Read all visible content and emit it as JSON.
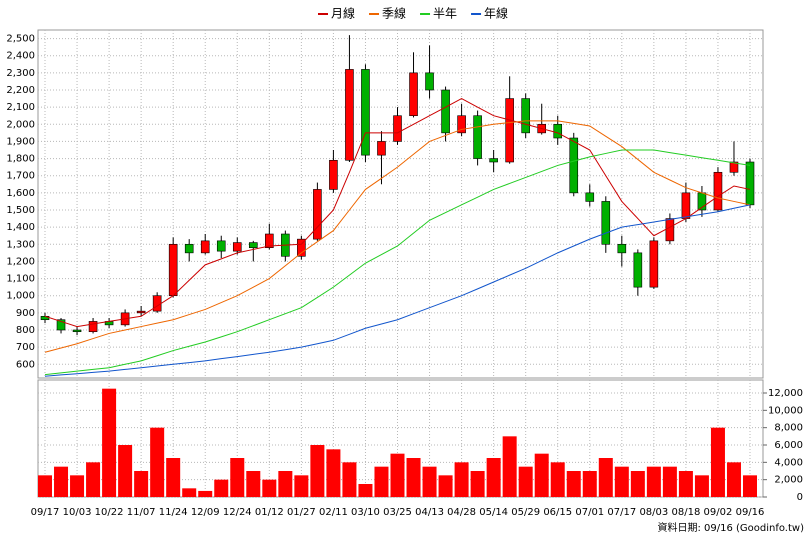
{
  "chart_data": [
    {
      "type": "candlestick",
      "categories": [
        "09/17",
        null,
        "10/03",
        null,
        "10/22",
        null,
        "11/07",
        null,
        "11/24",
        null,
        "12/09",
        null,
        "12/24",
        null,
        "01/12",
        null,
        "01/27",
        null,
        "02/11",
        null,
        "03/10",
        null,
        "03/25",
        null,
        "04/13",
        null,
        "04/28",
        null,
        "05/14",
        null,
        "05/29",
        null,
        "06/15",
        null,
        "07/01",
        null,
        "07/17",
        null,
        "08/03",
        null,
        "08/18",
        null,
        "09/02",
        null,
        "09/16"
      ],
      "open": [
        880,
        860,
        800,
        790,
        850,
        830,
        900,
        910,
        1000,
        1300,
        1250,
        1320,
        1260,
        1310,
        1280,
        1360,
        1230,
        1330,
        1620,
        1790,
        2320,
        1820,
        1900,
        2050,
        2300,
        2200,
        1950,
        2050,
        1800,
        1780,
        2150,
        1950,
        2000,
        1920,
        1600,
        1550,
        1300,
        1250,
        1050,
        1320,
        1450,
        1600,
        1500,
        1720,
        1780
      ],
      "high": [
        900,
        870,
        820,
        870,
        870,
        920,
        940,
        1020,
        1340,
        1330,
        1360,
        1350,
        1340,
        1320,
        1420,
        1380,
        1350,
        1660,
        1850,
        2520,
        2350,
        1960,
        2100,
        2420,
        2460,
        2220,
        2120,
        2080,
        1850,
        2280,
        2180,
        2120,
        2050,
        1950,
        1650,
        1580,
        1350,
        1270,
        1340,
        1480,
        1660,
        1640,
        1750,
        1900,
        1800
      ],
      "low": [
        840,
        780,
        770,
        780,
        810,
        820,
        880,
        900,
        990,
        1200,
        1240,
        1220,
        1240,
        1200,
        1270,
        1200,
        1210,
        1320,
        1600,
        1780,
        1780,
        1650,
        1880,
        2040,
        2150,
        1900,
        1930,
        1760,
        1720,
        1770,
        1920,
        1940,
        1880,
        1580,
        1520,
        1250,
        1170,
        1000,
        1040,
        1300,
        1430,
        1460,
        1490,
        1700,
        1510
      ],
      "close": [
        860,
        800,
        790,
        850,
        830,
        900,
        910,
        1000,
        1300,
        1250,
        1320,
        1260,
        1310,
        1280,
        1360,
        1230,
        1330,
        1620,
        1790,
        2320,
        1820,
        1900,
        2050,
        2300,
        2200,
        1950,
        2050,
        1800,
        1780,
        2150,
        1950,
        2000,
        1920,
        1600,
        1550,
        1300,
        1250,
        1050,
        1320,
        1450,
        1600,
        1500,
        1720,
        1780,
        1530
      ],
      "up_color": "#ff0000",
      "down_color": "#00b000",
      "series": [
        {
          "name": "月線",
          "color": "#cc0000",
          "values": [
            880,
            850,
            820,
            835,
            850,
            865,
            880,
            940,
            1000,
            1090,
            1180,
            1215,
            1250,
            1270,
            1290,
            1295,
            1300,
            1400,
            1500,
            1720,
            1950,
            1950,
            1950,
            2000,
            2050,
            2100,
            2150,
            2100,
            2050,
            2025,
            2000,
            1975,
            1950,
            1900,
            1850,
            1700,
            1550,
            1450,
            1350,
            1400,
            1450,
            1515,
            1580,
            1640,
            1620
          ]
        },
        {
          "name": "季線",
          "color": "#ee6600",
          "values": [
            670,
            695,
            720,
            750,
            780,
            800,
            820,
            840,
            860,
            890,
            920,
            960,
            1000,
            1050,
            1100,
            1175,
            1250,
            1315,
            1380,
            1500,
            1620,
            1685,
            1750,
            1825,
            1900,
            1935,
            1970,
            1985,
            2000,
            2010,
            2020,
            2020,
            2020,
            2005,
            1990,
            1930,
            1870,
            1795,
            1720,
            1675,
            1630,
            1600,
            1570,
            1550,
            1530
          ]
        },
        {
          "name": "半年",
          "color": "#22cc22",
          "values": [
            540,
            550,
            560,
            570,
            580,
            600,
            620,
            650,
            680,
            705,
            730,
            760,
            790,
            825,
            860,
            895,
            930,
            990,
            1050,
            1120,
            1190,
            1240,
            1290,
            1365,
            1440,
            1485,
            1530,
            1575,
            1620,
            1655,
            1690,
            1725,
            1760,
            1785,
            1810,
            1830,
            1850,
            1850,
            1850,
            1835,
            1820,
            1805,
            1790,
            1775,
            1760
          ]
        },
        {
          "name": "年線",
          "color": "#1155cc",
          "values": [
            530,
            538,
            545,
            553,
            560,
            570,
            580,
            590,
            600,
            610,
            620,
            633,
            645,
            658,
            670,
            685,
            700,
            720,
            740,
            775,
            810,
            835,
            860,
            895,
            930,
            965,
            1000,
            1040,
            1080,
            1120,
            1160,
            1205,
            1250,
            1290,
            1330,
            1365,
            1400,
            1415,
            1430,
            1445,
            1460,
            1475,
            1490,
            1510,
            1530
          ]
        }
      ],
      "ylim": [
        520,
        2550
      ],
      "yticks": [
        600,
        700,
        800,
        900,
        {
          "value": 1000,
          "label": "1,000"
        },
        {
          "value": 1100,
          "label": "1,100"
        },
        {
          "value": 1200,
          "label": "1,200"
        },
        {
          "value": 1300,
          "label": "1,300"
        },
        {
          "value": 1400,
          "label": "1,400"
        },
        {
          "value": 1500,
          "label": "1,500"
        },
        {
          "value": 1600,
          "label": "1,600"
        },
        {
          "value": 1700,
          "label": "1,700"
        },
        {
          "value": 1800,
          "label": "1,800"
        },
        {
          "value": 1900,
          "label": "1,900"
        },
        {
          "value": 2000,
          "label": "2,000"
        },
        {
          "value": 2100,
          "label": "2,100"
        },
        {
          "value": 2200,
          "label": "2,200"
        },
        {
          "value": 2300,
          "label": "2,300"
        },
        {
          "value": 2400,
          "label": "2,400"
        },
        {
          "value": 2500,
          "label": "2,500"
        }
      ],
      "grid": true
    },
    {
      "type": "bar",
      "values": [
        2500,
        3500,
        2500,
        4000,
        12500,
        6000,
        3000,
        8000,
        4500,
        1000,
        700,
        2000,
        4500,
        3000,
        2000,
        3000,
        2500,
        6000,
        5500,
        4000,
        1500,
        3500,
        5000,
        4500,
        3500,
        2500,
        4000,
        3000,
        4500,
        7000,
        3500,
        5000,
        4000,
        3000,
        3000,
        4500,
        3500,
        3000,
        3500,
        3500,
        3000,
        2500,
        8000,
        4000,
        2500
      ],
      "color": "#ff0000",
      "ylim": [
        0,
        13500
      ],
      "yticks": [
        0,
        {
          "value": 2000,
          "label": "2,000"
        },
        {
          "value": 4000,
          "label": "4,000"
        },
        {
          "value": 6000,
          "label": "6,000"
        },
        {
          "value": 8000,
          "label": "8,000"
        },
        {
          "value": 10000,
          "label": "10,000"
        },
        {
          "value": 12000,
          "label": "12,000"
        }
      ],
      "grid": true
    }
  ],
  "footer": "資料日期: 09/16 (Goodinfo.tw)"
}
